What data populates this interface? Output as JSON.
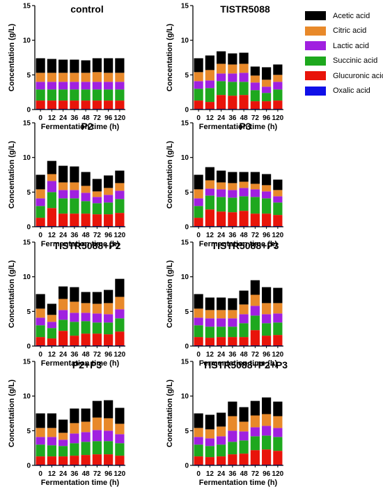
{
  "legend": {
    "items": [
      {
        "label": "Acetic acid",
        "color": "#000000"
      },
      {
        "label": "Citric acid",
        "color": "#e8892a"
      },
      {
        "label": "Lactic acid",
        "color": "#a020e0"
      },
      {
        "label": "Succinic acid",
        "color": "#1ea81e"
      },
      {
        "label": "Glucuronic acid",
        "color": "#e8140a"
      },
      {
        "label": "Oxalic acid",
        "color": "#1010e8"
      }
    ]
  },
  "chart_data": [
    {
      "type": "bar",
      "stacked": true,
      "title": "control",
      "categories": [
        "0",
        "12",
        "24",
        "36",
        "48",
        "72",
        "96",
        "120"
      ],
      "xlabel": "Fermentation time (h)",
      "ylabel": "Concentation (g/L)",
      "ylim": [
        0,
        15
      ],
      "yticks": [
        0,
        5,
        10,
        15
      ],
      "series": [
        {
          "name": "Oxalic acid",
          "values": [
            0.1,
            0.1,
            0.1,
            0.1,
            0.1,
            0.1,
            0.1,
            0.1
          ]
        },
        {
          "name": "Glucuronic acid",
          "values": [
            1.2,
            1.2,
            1.2,
            1.2,
            1.2,
            1.2,
            1.2,
            1.2
          ]
        },
        {
          "name": "Succinic acid",
          "values": [
            1.6,
            1.6,
            1.6,
            1.6,
            1.6,
            1.6,
            1.6,
            1.6
          ]
        },
        {
          "name": "Lactic acid",
          "values": [
            1.1,
            1.1,
            1.1,
            1.1,
            1.1,
            1.1,
            1.1,
            1.1
          ]
        },
        {
          "name": "Citric acid",
          "values": [
            1.3,
            1.3,
            1.3,
            1.3,
            1.3,
            1.4,
            1.3,
            1.3
          ]
        },
        {
          "name": "Acetic acid",
          "values": [
            2.1,
            2.0,
            1.9,
            1.9,
            1.8,
            2.0,
            2.1,
            2.1
          ]
        }
      ]
    },
    {
      "type": "bar",
      "stacked": true,
      "title": "TISTR5088",
      "categories": [
        "0",
        "12",
        "24",
        "36",
        "48",
        "72",
        "96",
        "120"
      ],
      "xlabel": "Fermentation time (h)",
      "ylabel": "Concentation (g/L)",
      "ylim": [
        0,
        15
      ],
      "yticks": [
        0,
        5,
        10,
        15
      ],
      "series": [
        {
          "name": "Oxalic acid",
          "values": [
            0.1,
            0.1,
            0.1,
            0.1,
            0.1,
            0.1,
            0.1,
            0.1
          ]
        },
        {
          "name": "Glucuronic acid",
          "values": [
            1.2,
            1.0,
            2.0,
            1.9,
            2.0,
            1.1,
            1.1,
            1.2
          ]
        },
        {
          "name": "Succinic acid",
          "values": [
            1.7,
            2.0,
            2.0,
            2.0,
            1.9,
            1.6,
            1.2,
            1.6
          ]
        },
        {
          "name": "Lactic acid",
          "values": [
            1.1,
            1.1,
            1.1,
            1.2,
            1.3,
            1.1,
            0.9,
            1.1
          ]
        },
        {
          "name": "Citric acid",
          "values": [
            1.3,
            1.5,
            1.4,
            1.3,
            1.3,
            1.0,
            1.0,
            1.0
          ]
        },
        {
          "name": "Acetic acid",
          "values": [
            2.0,
            2.1,
            1.8,
            1.6,
            1.6,
            1.3,
            1.8,
            1.5
          ]
        }
      ]
    },
    {
      "type": "bar",
      "stacked": true,
      "title": "P2",
      "categories": [
        "0",
        "12",
        "24",
        "36",
        "48",
        "72",
        "96",
        "120"
      ],
      "xlabel": "Fermentation time (h)",
      "ylabel": "Concentation (g/L)",
      "ylim": [
        0,
        15
      ],
      "yticks": [
        0,
        5,
        10,
        15
      ],
      "series": [
        {
          "name": "Oxalic acid",
          "values": [
            0.1,
            0.1,
            0.1,
            0.1,
            0.1,
            0.1,
            0.1,
            0.1
          ]
        },
        {
          "name": "Glucuronic acid",
          "values": [
            1.2,
            2.6,
            1.8,
            1.8,
            1.8,
            1.7,
            1.7,
            1.9
          ]
        },
        {
          "name": "Succinic acid",
          "values": [
            1.7,
            2.3,
            2.2,
            2.2,
            1.8,
            1.6,
            1.7,
            2.0
          ]
        },
        {
          "name": "Lactic acid",
          "values": [
            1.1,
            1.6,
            1.2,
            1.2,
            1.2,
            0.9,
            1.1,
            1.2
          ]
        },
        {
          "name": "Citric acid",
          "values": [
            1.3,
            1.0,
            1.1,
            1.1,
            1.0,
            0.8,
            1.0,
            1.1
          ]
        },
        {
          "name": "Acetic acid",
          "values": [
            2.1,
            1.9,
            2.4,
            2.3,
            2.0,
            1.8,
            1.8,
            1.8
          ]
        }
      ]
    },
    {
      "type": "bar",
      "stacked": true,
      "title": "P3",
      "categories": [
        "0",
        "12",
        "24",
        "36",
        "48",
        "72",
        "96",
        "120"
      ],
      "xlabel": "Fermentation time (h)",
      "ylabel": "Concentation (g/L)",
      "ylim": [
        0,
        15
      ],
      "yticks": [
        0,
        5,
        10,
        15
      ],
      "series": [
        {
          "name": "Oxalic acid",
          "values": [
            0.1,
            0.1,
            0.1,
            0.1,
            0.1,
            0.1,
            0.1,
            0.1
          ]
        },
        {
          "name": "Glucuronic acid",
          "values": [
            1.2,
            2.4,
            2.1,
            2.0,
            2.2,
            1.8,
            1.8,
            1.6
          ]
        },
        {
          "name": "Succinic acid",
          "values": [
            1.7,
            2.0,
            2.1,
            2.1,
            2.1,
            2.4,
            2.2,
            1.8
          ]
        },
        {
          "name": "Lactic acid",
          "values": [
            1.1,
            1.0,
            1.1,
            1.1,
            1.2,
            1.1,
            1.0,
            0.9
          ]
        },
        {
          "name": "Citric acid",
          "values": [
            1.3,
            1.2,
            1.0,
            1.0,
            0.9,
            0.8,
            0.9,
            0.9
          ]
        },
        {
          "name": "Acetic acid",
          "values": [
            2.1,
            1.9,
            1.7,
            1.6,
            1.4,
            1.7,
            1.6,
            1.5
          ]
        }
      ]
    },
    {
      "type": "bar",
      "stacked": true,
      "title": "TISTR5088+P2",
      "categories": [
        "0",
        "12",
        "24",
        "36",
        "48",
        "72",
        "96",
        "120"
      ],
      "xlabel": "Fermentation time (h)",
      "ylabel": "Concentation (g/L)",
      "ylim": [
        0,
        15
      ],
      "yticks": [
        0,
        5,
        10,
        15
      ],
      "series": [
        {
          "name": "Oxalic acid",
          "values": [
            0.1,
            0.1,
            0.1,
            0.1,
            0.1,
            0.1,
            0.1,
            0.1
          ]
        },
        {
          "name": "Glucuronic acid",
          "values": [
            1.2,
            1.0,
            2.1,
            1.4,
            1.7,
            1.7,
            1.6,
            2.0
          ]
        },
        {
          "name": "Succinic acid",
          "values": [
            1.7,
            1.5,
            1.6,
            2.0,
            1.8,
            1.6,
            1.7,
            1.9
          ]
        },
        {
          "name": "Lactic acid",
          "values": [
            1.1,
            0.9,
            1.4,
            1.3,
            1.2,
            1.3,
            1.2,
            1.3
          ]
        },
        {
          "name": "Citric acid",
          "values": [
            1.3,
            1.0,
            1.6,
            1.6,
            1.4,
            1.4,
            1.6,
            1.8
          ]
        },
        {
          "name": "Acetic acid",
          "values": [
            2.1,
            1.6,
            1.8,
            2.1,
            1.6,
            1.7,
            1.9,
            2.6
          ]
        }
      ]
    },
    {
      "type": "bar",
      "stacked": true,
      "title": "TISTR5088+P3",
      "categories": [
        "0",
        "12",
        "24",
        "36",
        "48",
        "72",
        "96",
        "120"
      ],
      "xlabel": "Fermentation time (h)",
      "ylabel": "Concentation (g/L)",
      "ylim": [
        0,
        15
      ],
      "yticks": [
        0,
        5,
        10,
        15
      ],
      "series": [
        {
          "name": "Oxalic acid",
          "values": [
            0.1,
            0.1,
            0.1,
            0.1,
            0.1,
            0.1,
            0.1,
            0.1
          ]
        },
        {
          "name": "Glucuronic acid",
          "values": [
            1.2,
            1.1,
            1.2,
            1.2,
            1.2,
            2.2,
            1.4,
            1.5
          ]
        },
        {
          "name": "Succinic acid",
          "values": [
            1.7,
            1.6,
            1.5,
            1.5,
            2.0,
            2.1,
            1.8,
            1.8
          ]
        },
        {
          "name": "Lactic acid",
          "values": [
            1.1,
            1.2,
            1.2,
            1.2,
            1.3,
            1.4,
            1.3,
            1.3
          ]
        },
        {
          "name": "Citric acid",
          "values": [
            1.3,
            1.2,
            1.2,
            1.2,
            1.4,
            1.6,
            1.6,
            1.5
          ]
        },
        {
          "name": "Acetic acid",
          "values": [
            2.1,
            1.8,
            1.8,
            1.7,
            2.0,
            2.1,
            2.3,
            2.2
          ]
        }
      ]
    },
    {
      "type": "bar",
      "stacked": true,
      "title": "P2+P3",
      "categories": [
        "0",
        "12",
        "24",
        "36",
        "48",
        "72",
        "96",
        "120"
      ],
      "xlabel": "Fermentation time (h)",
      "ylabel": "Concentation (g/L)",
      "ylim": [
        0,
        15
      ],
      "yticks": [
        0,
        5,
        10,
        15
      ],
      "series": [
        {
          "name": "Oxalic acid",
          "values": [
            0.1,
            0.1,
            0.1,
            0.1,
            0.1,
            0.1,
            0.1,
            0.1
          ]
        },
        {
          "name": "Glucuronic acid",
          "values": [
            1.2,
            1.2,
            1.2,
            1.3,
            1.4,
            1.5,
            1.5,
            1.3
          ]
        },
        {
          "name": "Succinic acid",
          "values": [
            1.7,
            1.6,
            1.5,
            1.8,
            1.9,
            1.9,
            1.9,
            1.8
          ]
        },
        {
          "name": "Lactic acid",
          "values": [
            1.1,
            1.2,
            0.9,
            1.4,
            1.4,
            1.6,
            1.5,
            1.3
          ]
        },
        {
          "name": "Citric acid",
          "values": [
            1.3,
            1.3,
            1.0,
            1.5,
            1.5,
            1.8,
            1.8,
            1.5
          ]
        },
        {
          "name": "Acetic acid",
          "values": [
            2.1,
            2.1,
            1.9,
            2.1,
            1.9,
            2.4,
            2.6,
            2.3
          ]
        }
      ]
    },
    {
      "type": "bar",
      "stacked": true,
      "title": "TISTR5088+P2+P3",
      "categories": [
        "0",
        "12",
        "24",
        "36",
        "48",
        "72",
        "96",
        "120"
      ],
      "xlabel": "Fermentation time (h)",
      "ylabel": "Concentation (g/L)",
      "ylim": [
        0,
        15
      ],
      "yticks": [
        0,
        5,
        10,
        15
      ],
      "series": [
        {
          "name": "Oxalic acid",
          "values": [
            0.1,
            0.1,
            0.1,
            0.1,
            0.1,
            0.1,
            0.1,
            0.1
          ]
        },
        {
          "name": "Glucuronic acid",
          "values": [
            1.2,
            1.1,
            1.2,
            1.5,
            1.6,
            2.1,
            2.2,
            2.0
          ]
        },
        {
          "name": "Succinic acid",
          "values": [
            1.7,
            1.6,
            1.7,
            1.8,
            1.9,
            2.0,
            2.0,
            2.0
          ]
        },
        {
          "name": "Lactic acid",
          "values": [
            1.1,
            1.1,
            1.2,
            1.6,
            1.3,
            1.3,
            1.4,
            1.3
          ]
        },
        {
          "name": "Citric acid",
          "values": [
            1.3,
            1.3,
            1.4,
            2.1,
            1.4,
            1.7,
            1.7,
            1.7
          ]
        },
        {
          "name": "Acetic acid",
          "values": [
            2.1,
            2.1,
            2.0,
            2.1,
            2.1,
            2.1,
            2.4,
            2.1
          ]
        }
      ]
    }
  ]
}
